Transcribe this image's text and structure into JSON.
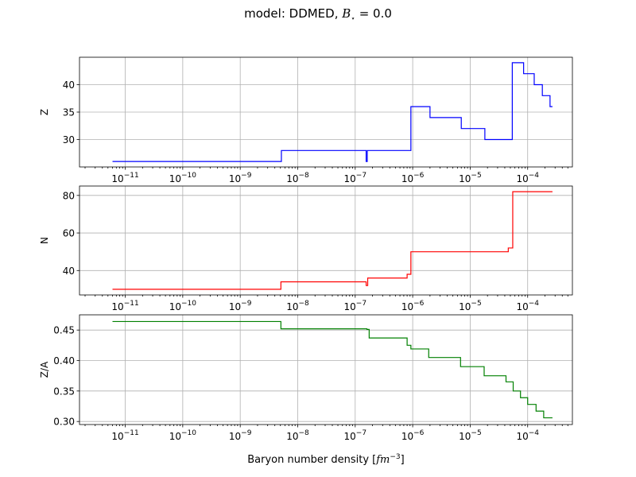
{
  "figure": {
    "title_prefix": "model: DDMED, ",
    "title_symbol": "B",
    "title_subscript": "⋆",
    "title_suffix": " = 0.0",
    "xlabel_main": "Baryon number density [",
    "xlabel_unit": "fm",
    "xlabel_exp": "−3",
    "xlabel_close": "]"
  },
  "chart_data": [
    {
      "type": "line",
      "title": "",
      "xlabel": "",
      "ylabel": "Z",
      "xscale": "log",
      "xlim": [
        1.6e-12,
        0.0006
      ],
      "ylim": [
        25,
        45
      ],
      "yticks": [
        30,
        35,
        40
      ],
      "grid": true,
      "color": "#0000ff",
      "series": [
        {
          "name": "",
          "step": true,
          "x": [
            6e-12,
            5.2e-09,
            1.55e-07,
            1.62e-07,
            1.7e-07,
            9.3e-07,
            2e-06,
            7e-06,
            1.8e-05,
            5.4e-05,
            8.5e-05,
            0.00013,
            0.00018,
            0.000245,
            0.00027
          ],
          "y": [
            26,
            28,
            26,
            28,
            28,
            36,
            34,
            32,
            30,
            44,
            42,
            40,
            38,
            36,
            36
          ]
        }
      ]
    },
    {
      "type": "line",
      "title": "",
      "xlabel": "",
      "ylabel": "N",
      "xscale": "log",
      "xlim": [
        1.6e-12,
        0.0006
      ],
      "ylim": [
        27,
        85
      ],
      "yticks": [
        40,
        60,
        80
      ],
      "grid": true,
      "color": "#ff0000",
      "series": [
        {
          "name": "",
          "step": true,
          "x": [
            6e-12,
            5.1e-09,
            1.55e-07,
            1.65e-07,
            8e-07,
            9.3e-07,
            4.6e-05,
            5.5e-05,
            0.00027
          ],
          "y": [
            30,
            34,
            32,
            36,
            38,
            50,
            52,
            82,
            82
          ]
        }
      ]
    },
    {
      "type": "line",
      "title": "",
      "xlabel": "Baryon number density [fm^-3]",
      "ylabel": "Z/A",
      "xscale": "log",
      "xlim": [
        1.6e-12,
        0.0006
      ],
      "ylim": [
        0.295,
        0.475
      ],
      "yticks": [
        0.3,
        0.35,
        0.4,
        0.45
      ],
      "grid": true,
      "color": "#008000",
      "series": [
        {
          "name": "",
          "step": true,
          "x": [
            6e-12,
            5.1e-09,
            1.6e-07,
            1.75e-07,
            8e-07,
            9.3e-07,
            1.9e-06,
            6.8e-06,
            1.75e-05,
            4.2e-05,
            5.6e-05,
            7.5e-05,
            0.0001,
            0.00014,
            0.00019,
            0.00024,
            0.00027
          ],
          "y": [
            0.464,
            0.452,
            0.451,
            0.437,
            0.425,
            0.419,
            0.405,
            0.39,
            0.375,
            0.365,
            0.35,
            0.339,
            0.328,
            0.317,
            0.306,
            0.306,
            0.306
          ]
        }
      ]
    }
  ]
}
